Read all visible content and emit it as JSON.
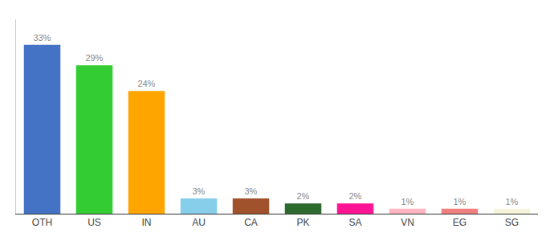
{
  "chart_data": {
    "type": "bar",
    "categories": [
      "OTH",
      "US",
      "IN",
      "AU",
      "CA",
      "PK",
      "SA",
      "VN",
      "EG",
      "SG"
    ],
    "values": [
      33,
      29,
      24,
      3,
      3,
      2,
      2,
      1,
      1,
      1
    ],
    "value_labels": [
      "33%",
      "29%",
      "24%",
      "3%",
      "3%",
      "2%",
      "2%",
      "1%",
      "1%",
      "1%"
    ],
    "colors": [
      "#4472C4",
      "#33CC33",
      "#FFA500",
      "#87CEEB",
      "#A0522D",
      "#2D6A2D",
      "#FF1493",
      "#FFB6C1",
      "#F08080",
      "#F5F5DC"
    ],
    "ylim": [
      0,
      38
    ],
    "data_labels": true,
    "grid": false,
    "tick_labels": "x"
  }
}
